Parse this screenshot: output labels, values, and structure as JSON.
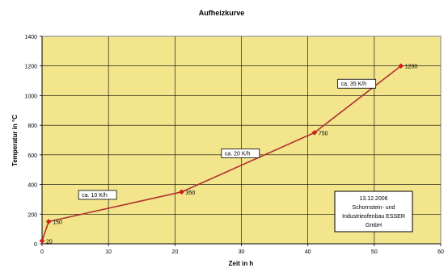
{
  "chart_data": {
    "type": "line",
    "title": "Aufheizkurve",
    "xlabel": "Zeit in h",
    "ylabel": "Temperatur in °C",
    "xlim": [
      0,
      60
    ],
    "ylim": [
      0,
      1400
    ],
    "x_ticks": [
      "0",
      "10",
      "20",
      "30",
      "40",
      "50",
      "60"
    ],
    "y_ticks": [
      "0",
      "200",
      "400",
      "600",
      "800",
      "1000",
      "1200",
      "1400"
    ],
    "grid": true,
    "legend": "none",
    "series": [
      {
        "x": [
          0,
          1,
          21,
          41,
          54
        ],
        "y": [
          20,
          150,
          350,
          750,
          1200
        ],
        "labels": [
          "20",
          "150",
          "350",
          "750",
          "1200"
        ]
      }
    ],
    "annotations": [
      {
        "text": "ca. 10 K/h"
      },
      {
        "text": "ca. 20 K/h"
      },
      {
        "text": "ca. 35 K/h"
      }
    ],
    "info_box": {
      "lines": [
        "13.12.2006",
        "Schornstein- und",
        "Industrieofenbau ESSER",
        "GmbH"
      ]
    },
    "colors": {
      "plot_background": "#f2e58c",
      "line": "#b03030",
      "marker": "#e01818",
      "grid": "#000000"
    }
  }
}
